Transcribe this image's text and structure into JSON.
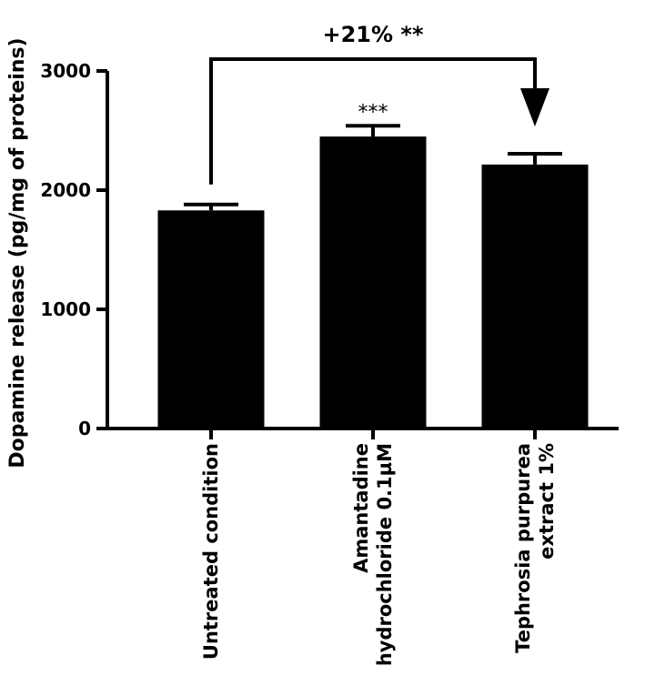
{
  "chart_data": {
    "type": "bar",
    "categories": [
      "Untreated condition",
      "Amantadine hydrochloride 0.1µM",
      "Tephrosia purpurea extract 1%"
    ],
    "category_lines": [
      [
        "Untreated condition"
      ],
      [
        "Amantadine",
        "hydrochloride 0.1µM"
      ],
      [
        "Tephrosia purpurea",
        "extract 1%"
      ]
    ],
    "values": [
      1830,
      2450,
      2215
    ],
    "errors": [
      50,
      90,
      90
    ],
    "significance": [
      "",
      "***",
      ""
    ],
    "ylabel": "Dopamine release (pg/mg of proteins)",
    "xlabel": "",
    "ylim": [
      0,
      3000
    ],
    "yticks": [
      0,
      1000,
      2000,
      3000
    ],
    "grid": false,
    "bar_color": "#000000",
    "comparison": {
      "from": 0,
      "to": 2,
      "label": "+21% **"
    }
  }
}
